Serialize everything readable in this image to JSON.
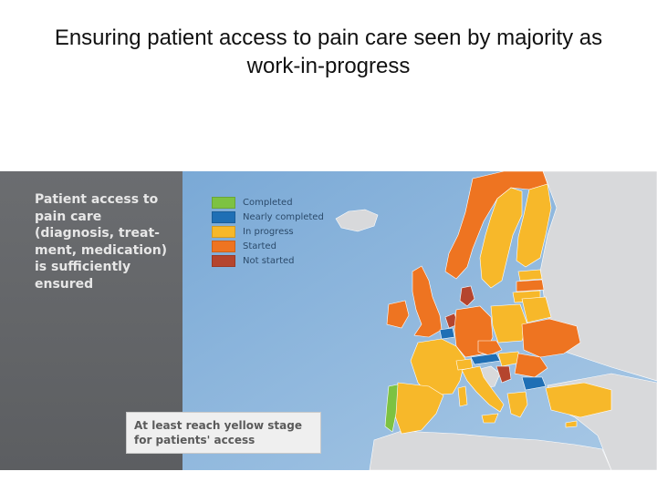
{
  "title": "Ensuring patient access to pain care seen by majority as work-in-progress",
  "panel": {
    "heading": "Patient access to pain care (diagnosis, treat-ment, medication) is sufficiently ensured"
  },
  "legend": [
    {
      "label": "Completed",
      "color": "#7dc242"
    },
    {
      "label": "Nearly completed",
      "color": "#1f6fb5"
    },
    {
      "label": "In progress",
      "color": "#f7b82a"
    },
    {
      "label": "Started",
      "color": "#ee7421"
    },
    {
      "label": "Not started",
      "color": "#b5452e"
    }
  ],
  "callout": {
    "text": "At least reach yellow stage for patients' access"
  },
  "colors": {
    "sea": "#8fb7dd",
    "non_eu_land": "#d7d9dc",
    "panel": "#5f6164"
  }
}
